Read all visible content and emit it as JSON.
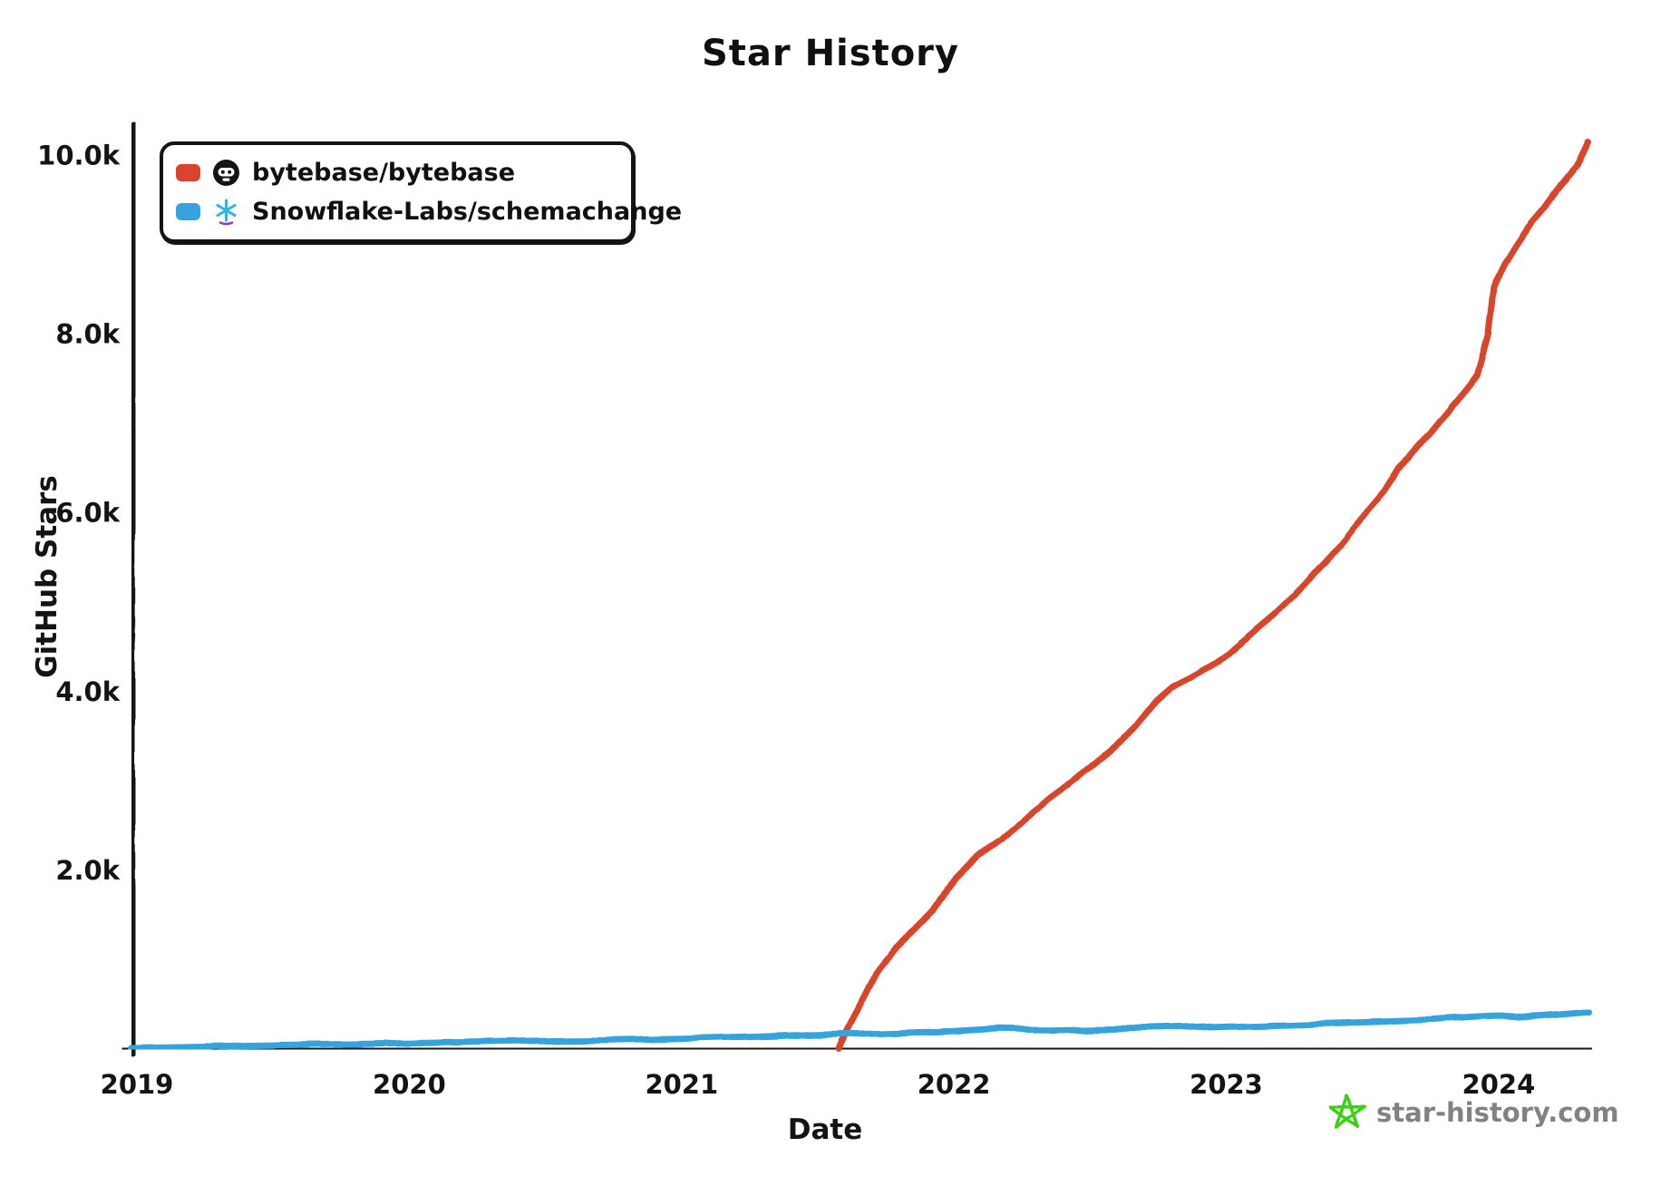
{
  "title": "Star History",
  "axes": {
    "x_label": "Date",
    "y_label": "GitHub Stars",
    "x_ticks": [
      {
        "value": 2019,
        "label": "2019"
      },
      {
        "value": 2020,
        "label": "2020"
      },
      {
        "value": 2021,
        "label": "2021"
      },
      {
        "value": 2022,
        "label": "2022"
      },
      {
        "value": 2023,
        "label": "2023"
      },
      {
        "value": 2024,
        "label": "2024"
      }
    ],
    "y_ticks": [
      {
        "value": 2000,
        "label": "2.0k"
      },
      {
        "value": 4000,
        "label": "4.0k"
      },
      {
        "value": 6000,
        "label": "6.0k"
      },
      {
        "value": 8000,
        "label": "8.0k"
      },
      {
        "value": 10000,
        "label": "10.0k"
      }
    ]
  },
  "legend": {
    "items": [
      {
        "label": "bytebase/bytebase",
        "color": "#d8452c",
        "icon": "github-avatar-icon"
      },
      {
        "label": "Snowflake-Labs/schemachange",
        "color": "#35a3dc",
        "icon": "snowflake-logo-icon"
      }
    ]
  },
  "watermark": {
    "text": "star-history.com",
    "text_color": "#828282",
    "star_color": "#3bd016",
    "icon": "pentagram-star-icon"
  },
  "colors": {
    "axis": "#141414",
    "background": "#ffffff",
    "snowflake_blue": "#29b5e8",
    "snowflake_purple": "#8a3cc7"
  },
  "chart_data": {
    "type": "line",
    "title": "Star History",
    "xlabel": "Date",
    "ylabel": "GitHub Stars",
    "x_unit": "decimal_year",
    "xlim": [
      2018.98,
      2024.33
    ],
    "ylim": [
      0,
      10400
    ],
    "grid": false,
    "legend_position": "top-left",
    "style": "xkcd-hand-drawn",
    "series": [
      {
        "name": "bytebase/bytebase",
        "color": "#d8452c",
        "points": [
          [
            2021.58,
            0
          ],
          [
            2021.62,
            250
          ],
          [
            2021.67,
            550
          ],
          [
            2021.72,
            850
          ],
          [
            2021.79,
            1150
          ],
          [
            2021.83,
            1270
          ],
          [
            2021.92,
            1550
          ],
          [
            2022.0,
            1900
          ],
          [
            2022.08,
            2150
          ],
          [
            2022.17,
            2350
          ],
          [
            2022.25,
            2550
          ],
          [
            2022.33,
            2750
          ],
          [
            2022.42,
            2950
          ],
          [
            2022.5,
            3150
          ],
          [
            2022.58,
            3350
          ],
          [
            2022.67,
            3600
          ],
          [
            2022.75,
            3900
          ],
          [
            2022.81,
            4060
          ],
          [
            2022.88,
            4180
          ],
          [
            2022.96,
            4320
          ],
          [
            2023.0,
            4420
          ],
          [
            2023.08,
            4620
          ],
          [
            2023.17,
            4850
          ],
          [
            2023.25,
            5080
          ],
          [
            2023.33,
            5350
          ],
          [
            2023.42,
            5650
          ],
          [
            2023.5,
            5960
          ],
          [
            2023.58,
            6250
          ],
          [
            2023.63,
            6500
          ],
          [
            2023.67,
            6620
          ],
          [
            2023.75,
            6900
          ],
          [
            2023.83,
            7200
          ],
          [
            2023.88,
            7380
          ],
          [
            2023.92,
            7550
          ],
          [
            2023.96,
            8000
          ],
          [
            2023.98,
            8530
          ],
          [
            2024.02,
            8780
          ],
          [
            2024.06,
            8980
          ],
          [
            2024.12,
            9250
          ],
          [
            2024.17,
            9430
          ],
          [
            2024.21,
            9600
          ],
          [
            2024.25,
            9750
          ],
          [
            2024.29,
            9900
          ],
          [
            2024.33,
            10150
          ]
        ]
      },
      {
        "name": "Snowflake-Labs/schemachange",
        "color": "#35a3dc",
        "points": [
          [
            2018.98,
            15
          ],
          [
            2019.25,
            30
          ],
          [
            2019.5,
            45
          ],
          [
            2019.75,
            55
          ],
          [
            2020.0,
            65
          ],
          [
            2020.25,
            80
          ],
          [
            2020.5,
            95
          ],
          [
            2020.75,
            105
          ],
          [
            2021.0,
            120
          ],
          [
            2021.25,
            140
          ],
          [
            2021.42,
            160
          ],
          [
            2021.5,
            150
          ],
          [
            2021.75,
            170
          ],
          [
            2022.0,
            195
          ],
          [
            2022.17,
            225
          ],
          [
            2022.33,
            215
          ],
          [
            2022.5,
            225
          ],
          [
            2022.75,
            235
          ],
          [
            2023.0,
            260
          ],
          [
            2023.25,
            280
          ],
          [
            2023.5,
            305
          ],
          [
            2023.75,
            330
          ],
          [
            2023.92,
            360
          ],
          [
            2024.0,
            370
          ],
          [
            2024.08,
            355
          ],
          [
            2024.25,
            400
          ],
          [
            2024.33,
            420
          ]
        ]
      }
    ]
  }
}
